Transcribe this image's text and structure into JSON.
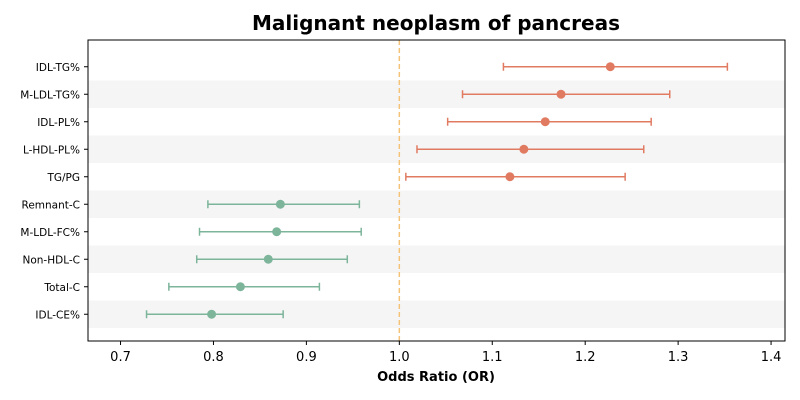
{
  "chart_data": {
    "type": "forest",
    "title": "Malignant neoplasm of pancreas",
    "xlabel": "Odds Ratio (OR)",
    "ylabel": "",
    "xlim": [
      0.665,
      1.415
    ],
    "xticks": [
      0.7,
      0.8,
      0.9,
      1.0,
      1.1,
      1.2,
      1.3,
      1.4
    ],
    "xtick_labels": [
      "0.7",
      "0.8",
      "0.9",
      "1.0",
      "1.1",
      "1.2",
      "1.3",
      "1.4"
    ],
    "reference_line": 1.0,
    "grid": false,
    "colors": {
      "risk": "#e07b62",
      "protective": "#7db59b",
      "reference": "#f5c27a",
      "band": "#f5f5f5"
    },
    "rows": [
      {
        "label": "IDL-TG%",
        "or": 1.227,
        "lower": 1.112,
        "upper": 1.353,
        "group": "risk"
      },
      {
        "label": "M-LDL-TG%",
        "or": 1.174,
        "lower": 1.068,
        "upper": 1.291,
        "group": "risk"
      },
      {
        "label": "IDL-PL%",
        "or": 1.157,
        "lower": 1.052,
        "upper": 1.271,
        "group": "risk"
      },
      {
        "label": "L-HDL-PL%",
        "or": 1.134,
        "lower": 1.019,
        "upper": 1.263,
        "group": "risk"
      },
      {
        "label": "TG/PG",
        "or": 1.119,
        "lower": 1.007,
        "upper": 1.243,
        "group": "risk"
      },
      {
        "label": "Remnant-C",
        "or": 0.872,
        "lower": 0.794,
        "upper": 0.957,
        "group": "protective"
      },
      {
        "label": "M-LDL-FC%",
        "or": 0.868,
        "lower": 0.785,
        "upper": 0.959,
        "group": "protective"
      },
      {
        "label": "Non-HDL-C",
        "or": 0.859,
        "lower": 0.782,
        "upper": 0.944,
        "group": "protective"
      },
      {
        "label": "Total-C",
        "or": 0.829,
        "lower": 0.752,
        "upper": 0.914,
        "group": "protective"
      },
      {
        "label": "IDL-CE%",
        "or": 0.798,
        "lower": 0.728,
        "upper": 0.875,
        "group": "protective"
      }
    ]
  }
}
